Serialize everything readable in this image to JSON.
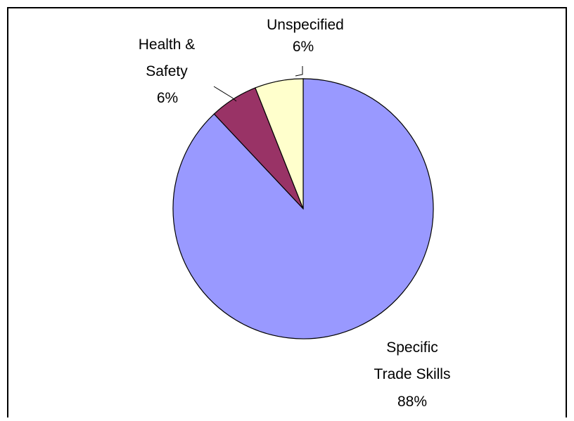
{
  "chart_data": {
    "type": "pie",
    "title": "",
    "slices": [
      {
        "label_lines": [
          "Specific",
          "Trade Skills"
        ],
        "value_label": "88%",
        "value": 88,
        "color": "#9999ff"
      },
      {
        "label_lines": [
          "Health &",
          "Safety"
        ],
        "value_label": "6%",
        "value": 6,
        "color": "#993366"
      },
      {
        "label_lines": [
          "Unspecified"
        ],
        "value_label": "6%",
        "value": 6,
        "color": "#ffffcc"
      }
    ],
    "start_position": "12 o'clock",
    "direction": "clockwise",
    "legend": "none",
    "border_color": "#000000"
  }
}
